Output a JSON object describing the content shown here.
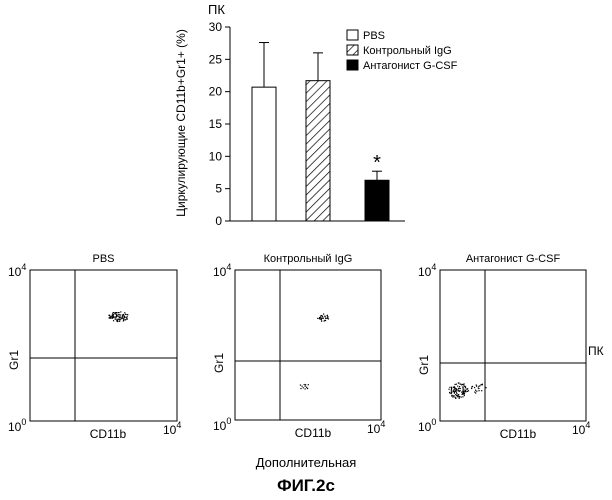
{
  "top_label": "ПК",
  "right_label": "ПК",
  "caption_bottom": "Дополнительная",
  "figure_label": "ФИГ.2с",
  "chart_data": [
    {
      "type": "bar",
      "ylabel": "Циркулирующие CD11b+Gr1+ (%)",
      "ylim": [
        0,
        30
      ],
      "yticks": [
        0,
        5,
        10,
        15,
        20,
        25,
        30
      ],
      "categories": [
        "PBS",
        "Контрольный IgG",
        "Антагонист G-CSF"
      ],
      "values": [
        20.7,
        21.7,
        6.3
      ],
      "errors": [
        6.9,
        4.3,
        1.4
      ],
      "fills": [
        "white",
        "hatch",
        "black"
      ],
      "significance": [
        "",
        "",
        "*"
      ],
      "legend": [
        "PBS",
        "Контрольный IgG",
        "Антагонист G-CSF"
      ],
      "legend_position": "top-right"
    },
    {
      "type": "scatter",
      "panels": [
        {
          "title": "PBS",
          "xlabel": "CD11b",
          "ylabel": "Gr1",
          "x_min_label": "10",
          "x_min_exp": "0",
          "x_max_label": "10",
          "x_max_exp": "4",
          "y_max_label": "10",
          "y_max_exp": "4",
          "y_min_label": "10",
          "y_min_exp": "0",
          "clusters": [
            "upper-right"
          ]
        },
        {
          "title": "Контрольный IgG",
          "xlabel": "CD11b",
          "ylabel": "Gr1",
          "x_min_label": "10",
          "x_min_exp": "0",
          "x_max_label": "10",
          "x_max_exp": "4",
          "y_max_label": "10",
          "y_max_exp": "4",
          "y_min_label": "10",
          "y_min_exp": "0",
          "clusters": [
            "upper-right-sparse",
            "lower-right-sparse"
          ]
        },
        {
          "title": "Антагонист G-CSF",
          "xlabel": "CD11b",
          "ylabel": "Gr1",
          "x_min_label": "10",
          "x_min_exp": "0",
          "x_max_label": "10",
          "x_max_exp": "4",
          "y_max_label": "10",
          "y_max_exp": "4",
          "y_min_label": "10",
          "y_min_exp": "0",
          "clusters": [
            "lower-left"
          ]
        }
      ]
    }
  ]
}
